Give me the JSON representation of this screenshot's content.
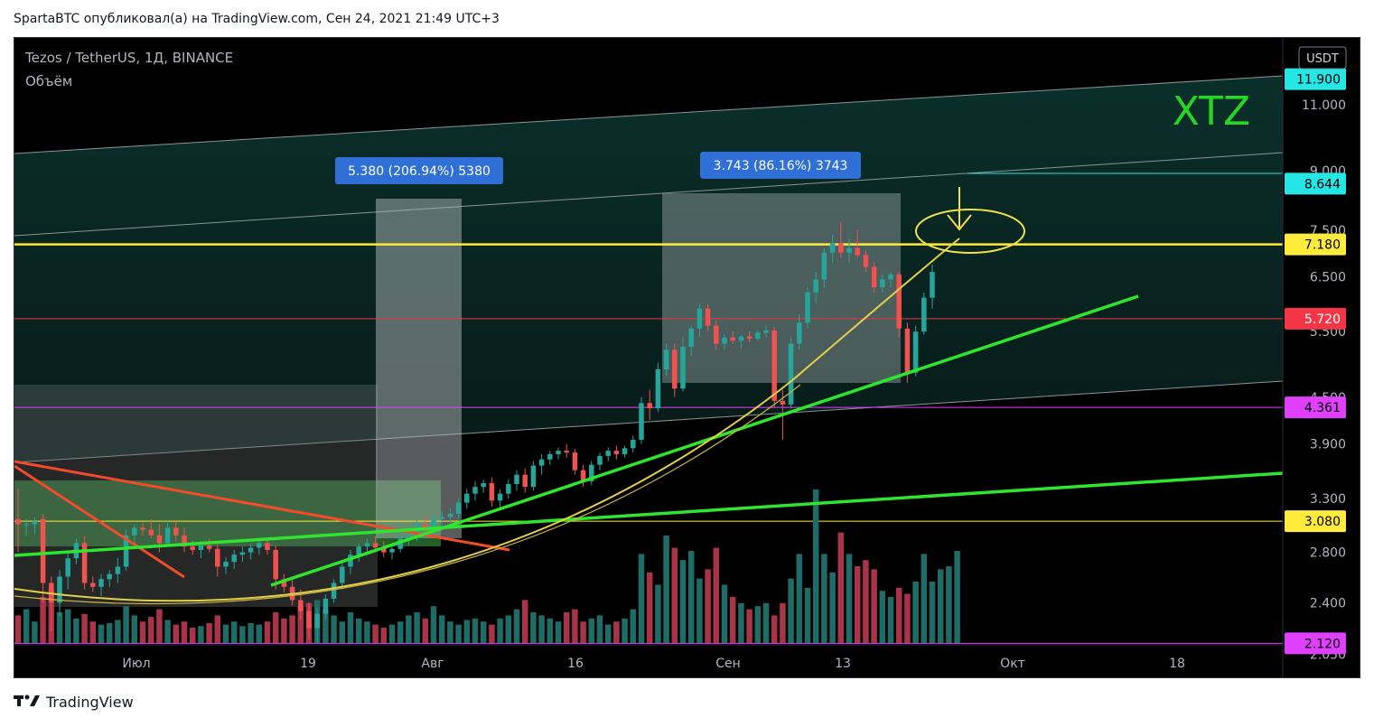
{
  "header": {
    "publish_line": "SpartaBTC опубликовал(а) на TradingView.com, Сен 24, 2021 21:49 UTC+3"
  },
  "chart": {
    "symbol_line": "Tezos / TetherUS, 1Д, BINANCE",
    "volume_label": "Объём",
    "currency": "USDT",
    "watermark": "XTZ",
    "measure_1": "5.380 (206.94%) 5380",
    "measure_2": "3.743 (86.16%) 3743"
  },
  "chart_data": {
    "type": "candlestick",
    "title": "Tezos / TetherUS, 1Д, BINANCE",
    "scale": "log",
    "ylim": [
      1.9,
      13.5
    ],
    "y_ticks": [
      "11.000",
      "9.000",
      "7.500",
      "6.500",
      "5.500",
      "4.500",
      "3.900",
      "3.300",
      "2.800",
      "2.400",
      "2.050"
    ],
    "x_ticks": [
      "Июл",
      "19",
      "Авг",
      "16",
      "Сен",
      "13",
      "Окт",
      "18"
    ],
    "price_labels": [
      {
        "value": "11.900",
        "color": "#26e5e5"
      },
      {
        "value": "8.644",
        "color": "#26e5e5"
      },
      {
        "value": "7.180",
        "color": "#ffeb3b"
      },
      {
        "value": "5.720",
        "color": "#f23645"
      },
      {
        "value": "4.361",
        "color": "#e040fb"
      },
      {
        "value": "3.080",
        "color": "#ffeb3b"
      },
      {
        "value": "2.120",
        "color": "#e040fb"
      }
    ],
    "horizontal_levels": [
      7.18,
      5.72,
      4.361,
      3.08,
      2.12
    ],
    "candles": [
      {
        "o": 3.1,
        "h": 3.4,
        "l": 2.8,
        "c": 3.05
      },
      {
        "o": 3.05,
        "h": 3.1,
        "l": 2.95,
        "c": 3.05
      },
      {
        "o": 3.05,
        "h": 3.12,
        "l": 2.96,
        "c": 3.08
      },
      {
        "o": 3.1,
        "h": 3.15,
        "l": 2.4,
        "c": 2.55
      },
      {
        "o": 2.55,
        "h": 2.6,
        "l": 2.2,
        "c": 2.4
      },
      {
        "o": 2.4,
        "h": 2.65,
        "l": 2.3,
        "c": 2.6
      },
      {
        "o": 2.6,
        "h": 2.8,
        "l": 2.5,
        "c": 2.75
      },
      {
        "o": 2.75,
        "h": 2.92,
        "l": 2.7,
        "c": 2.88
      },
      {
        "o": 2.88,
        "h": 2.95,
        "l": 2.5,
        "c": 2.55
      },
      {
        "o": 2.55,
        "h": 2.6,
        "l": 2.48,
        "c": 2.52
      },
      {
        "o": 2.52,
        "h": 2.62,
        "l": 2.45,
        "c": 2.58
      },
      {
        "o": 2.58,
        "h": 2.65,
        "l": 2.52,
        "c": 2.62
      },
      {
        "o": 2.62,
        "h": 2.75,
        "l": 2.55,
        "c": 2.68
      },
      {
        "o": 2.68,
        "h": 3.0,
        "l": 2.65,
        "c": 2.95
      },
      {
        "o": 2.95,
        "h": 3.05,
        "l": 2.85,
        "c": 3.02
      },
      {
        "o": 3.02,
        "h": 3.06,
        "l": 2.95,
        "c": 3.0
      },
      {
        "o": 3.0,
        "h": 3.1,
        "l": 2.92,
        "c": 2.95
      },
      {
        "o": 2.95,
        "h": 3.05,
        "l": 2.8,
        "c": 2.88
      },
      {
        "o": 2.88,
        "h": 3.08,
        "l": 2.85,
        "c": 3.02
      },
      {
        "o": 3.02,
        "h": 3.08,
        "l": 2.9,
        "c": 2.95
      },
      {
        "o": 2.95,
        "h": 3.02,
        "l": 2.8,
        "c": 2.85
      },
      {
        "o": 2.85,
        "h": 2.9,
        "l": 2.78,
        "c": 2.82
      },
      {
        "o": 2.82,
        "h": 2.9,
        "l": 2.75,
        "c": 2.86
      },
      {
        "o": 2.86,
        "h": 2.92,
        "l": 2.8,
        "c": 2.83
      },
      {
        "o": 2.83,
        "h": 2.9,
        "l": 2.6,
        "c": 2.68
      },
      {
        "o": 2.68,
        "h": 2.76,
        "l": 2.62,
        "c": 2.72
      },
      {
        "o": 2.72,
        "h": 2.82,
        "l": 2.66,
        "c": 2.78
      },
      {
        "o": 2.78,
        "h": 2.85,
        "l": 2.72,
        "c": 2.8
      },
      {
        "o": 2.8,
        "h": 2.88,
        "l": 2.74,
        "c": 2.84
      },
      {
        "o": 2.84,
        "h": 2.92,
        "l": 2.78,
        "c": 2.88
      },
      {
        "o": 2.88,
        "h": 2.92,
        "l": 2.78,
        "c": 2.82
      },
      {
        "o": 2.82,
        "h": 2.86,
        "l": 2.5,
        "c": 2.58
      },
      {
        "o": 2.58,
        "h": 2.62,
        "l": 2.48,
        "c": 2.52
      },
      {
        "o": 2.52,
        "h": 2.6,
        "l": 2.38,
        "c": 2.42
      },
      {
        "o": 2.42,
        "h": 2.5,
        "l": 2.28,
        "c": 2.34
      },
      {
        "o": 2.34,
        "h": 2.4,
        "l": 2.15,
        "c": 2.22
      },
      {
        "o": 2.22,
        "h": 2.36,
        "l": 2.12,
        "c": 2.32
      },
      {
        "o": 2.32,
        "h": 2.46,
        "l": 2.28,
        "c": 2.43
      },
      {
        "o": 2.43,
        "h": 2.58,
        "l": 2.4,
        "c": 2.55
      },
      {
        "o": 2.55,
        "h": 2.72,
        "l": 2.5,
        "c": 2.68
      },
      {
        "o": 2.68,
        "h": 2.82,
        "l": 2.62,
        "c": 2.78
      },
      {
        "o": 2.78,
        "h": 2.88,
        "l": 2.72,
        "c": 2.85
      },
      {
        "o": 2.85,
        "h": 2.92,
        "l": 2.78,
        "c": 2.88
      },
      {
        "o": 2.88,
        "h": 2.94,
        "l": 2.8,
        "c": 2.84
      },
      {
        "o": 2.84,
        "h": 2.9,
        "l": 2.76,
        "c": 2.8
      },
      {
        "o": 2.8,
        "h": 2.88,
        "l": 2.74,
        "c": 2.83
      },
      {
        "o": 2.83,
        "h": 2.95,
        "l": 2.8,
        "c": 2.92
      },
      {
        "o": 2.92,
        "h": 3.02,
        "l": 2.86,
        "c": 2.98
      },
      {
        "o": 2.98,
        "h": 3.1,
        "l": 2.9,
        "c": 3.05
      },
      {
        "o": 3.05,
        "h": 3.15,
        "l": 2.95,
        "c": 3.0
      },
      {
        "o": 3.0,
        "h": 3.14,
        "l": 2.94,
        "c": 3.1
      },
      {
        "o": 3.1,
        "h": 3.18,
        "l": 3.02,
        "c": 3.12
      },
      {
        "o": 3.12,
        "h": 3.2,
        "l": 3.06,
        "c": 3.15
      },
      {
        "o": 3.15,
        "h": 3.3,
        "l": 3.1,
        "c": 3.26
      },
      {
        "o": 3.26,
        "h": 3.4,
        "l": 3.2,
        "c": 3.35
      },
      {
        "o": 3.35,
        "h": 3.48,
        "l": 3.28,
        "c": 3.42
      },
      {
        "o": 3.42,
        "h": 3.5,
        "l": 3.36,
        "c": 3.46
      },
      {
        "o": 3.46,
        "h": 3.52,
        "l": 3.22,
        "c": 3.28
      },
      {
        "o": 3.28,
        "h": 3.4,
        "l": 3.2,
        "c": 3.35
      },
      {
        "o": 3.35,
        "h": 3.5,
        "l": 3.3,
        "c": 3.45
      },
      {
        "o": 3.45,
        "h": 3.6,
        "l": 3.38,
        "c": 3.55
      },
      {
        "o": 3.55,
        "h": 3.62,
        "l": 3.36,
        "c": 3.42
      },
      {
        "o": 3.42,
        "h": 3.7,
        "l": 3.38,
        "c": 3.65
      },
      {
        "o": 3.65,
        "h": 3.78,
        "l": 3.55,
        "c": 3.72
      },
      {
        "o": 3.72,
        "h": 3.82,
        "l": 3.66,
        "c": 3.78
      },
      {
        "o": 3.78,
        "h": 3.86,
        "l": 3.72,
        "c": 3.82
      },
      {
        "o": 3.82,
        "h": 3.9,
        "l": 3.74,
        "c": 3.8
      },
      {
        "o": 3.8,
        "h": 3.84,
        "l": 3.55,
        "c": 3.6
      },
      {
        "o": 3.6,
        "h": 3.66,
        "l": 3.42,
        "c": 3.48
      },
      {
        "o": 3.48,
        "h": 3.7,
        "l": 3.44,
        "c": 3.66
      },
      {
        "o": 3.66,
        "h": 3.8,
        "l": 3.6,
        "c": 3.76
      },
      {
        "o": 3.76,
        "h": 3.86,
        "l": 3.7,
        "c": 3.82
      },
      {
        "o": 3.82,
        "h": 3.88,
        "l": 3.72,
        "c": 3.78
      },
      {
        "o": 3.78,
        "h": 3.88,
        "l": 3.74,
        "c": 3.85
      },
      {
        "o": 3.85,
        "h": 4.0,
        "l": 3.8,
        "c": 3.95
      },
      {
        "o": 3.95,
        "h": 4.5,
        "l": 3.9,
        "c": 4.42
      },
      {
        "o": 4.42,
        "h": 4.6,
        "l": 4.2,
        "c": 4.35
      },
      {
        "o": 4.35,
        "h": 5.0,
        "l": 4.3,
        "c": 4.9
      },
      {
        "o": 4.9,
        "h": 5.3,
        "l": 4.8,
        "c": 5.2
      },
      {
        "o": 5.2,
        "h": 5.3,
        "l": 4.5,
        "c": 4.62
      },
      {
        "o": 4.62,
        "h": 5.4,
        "l": 4.58,
        "c": 5.25
      },
      {
        "o": 5.25,
        "h": 5.6,
        "l": 5.1,
        "c": 5.55
      },
      {
        "o": 5.55,
        "h": 6.0,
        "l": 5.4,
        "c": 5.9
      },
      {
        "o": 5.9,
        "h": 5.98,
        "l": 5.5,
        "c": 5.6
      },
      {
        "o": 5.6,
        "h": 5.7,
        "l": 5.2,
        "c": 5.3
      },
      {
        "o": 5.3,
        "h": 5.45,
        "l": 5.2,
        "c": 5.4
      },
      {
        "o": 5.4,
        "h": 5.5,
        "l": 5.3,
        "c": 5.35
      },
      {
        "o": 5.35,
        "h": 5.45,
        "l": 5.22,
        "c": 5.42
      },
      {
        "o": 5.42,
        "h": 5.5,
        "l": 5.32,
        "c": 5.38
      },
      {
        "o": 5.38,
        "h": 5.52,
        "l": 5.34,
        "c": 5.48
      },
      {
        "o": 5.48,
        "h": 5.6,
        "l": 5.4,
        "c": 5.52
      },
      {
        "o": 5.52,
        "h": 5.58,
        "l": 4.36,
        "c": 4.45
      },
      {
        "o": 4.45,
        "h": 4.6,
        "l": 3.95,
        "c": 4.4
      },
      {
        "o": 4.4,
        "h": 5.4,
        "l": 4.35,
        "c": 5.3
      },
      {
        "o": 5.3,
        "h": 5.8,
        "l": 5.2,
        "c": 5.65
      },
      {
        "o": 5.65,
        "h": 6.3,
        "l": 5.55,
        "c": 6.2
      },
      {
        "o": 6.2,
        "h": 6.6,
        "l": 6.0,
        "c": 6.45
      },
      {
        "o": 6.45,
        "h": 7.1,
        "l": 6.3,
        "c": 7.0
      },
      {
        "o": 7.0,
        "h": 7.4,
        "l": 6.8,
        "c": 7.2
      },
      {
        "o": 7.2,
        "h": 7.7,
        "l": 6.9,
        "c": 7.0
      },
      {
        "o": 7.0,
        "h": 7.3,
        "l": 6.8,
        "c": 7.1
      },
      {
        "o": 7.1,
        "h": 7.5,
        "l": 6.9,
        "c": 6.95
      },
      {
        "o": 6.95,
        "h": 7.05,
        "l": 6.6,
        "c": 6.7
      },
      {
        "o": 6.7,
        "h": 6.8,
        "l": 6.2,
        "c": 6.3
      },
      {
        "o": 6.3,
        "h": 6.55,
        "l": 6.2,
        "c": 6.45
      },
      {
        "o": 6.45,
        "h": 6.6,
        "l": 6.3,
        "c": 6.55
      },
      {
        "o": 6.55,
        "h": 6.6,
        "l": 5.4,
        "c": 5.55
      },
      {
        "o": 5.55,
        "h": 5.65,
        "l": 4.7,
        "c": 4.85
      },
      {
        "o": 4.85,
        "h": 5.6,
        "l": 4.8,
        "c": 5.5
      },
      {
        "o": 5.5,
        "h": 6.2,
        "l": 5.45,
        "c": 6.1
      },
      {
        "o": 6.1,
        "h": 6.75,
        "l": 5.9,
        "c": 6.6
      }
    ],
    "volume": [
      18,
      22,
      14,
      30,
      35,
      20,
      22,
      16,
      19,
      14,
      12,
      13,
      15,
      24,
      18,
      14,
      17,
      22,
      15,
      12,
      14,
      10,
      11,
      13,
      18,
      12,
      14,
      11,
      13,
      12,
      14,
      20,
      16,
      18,
      24,
      26,
      28,
      22,
      18,
      14,
      20,
      16,
      14,
      12,
      10,
      12,
      14,
      18,
      20,
      16,
      24,
      18,
      14,
      12,
      15,
      16,
      14,
      12,
      16,
      18,
      22,
      28,
      20,
      18,
      16,
      14,
      20,
      22,
      14,
      16,
      18,
      12,
      14,
      16,
      22,
      58,
      46,
      38,
      70,
      62,
      54,
      60,
      42,
      48,
      62,
      38,
      30,
      26,
      22,
      24,
      26,
      18,
      26,
      42,
      58,
      36,
      100,
      58,
      46,
      72,
      58,
      50,
      54,
      48,
      34,
      30,
      36,
      32,
      40,
      58,
      40,
      48,
      50,
      60
    ]
  }
}
